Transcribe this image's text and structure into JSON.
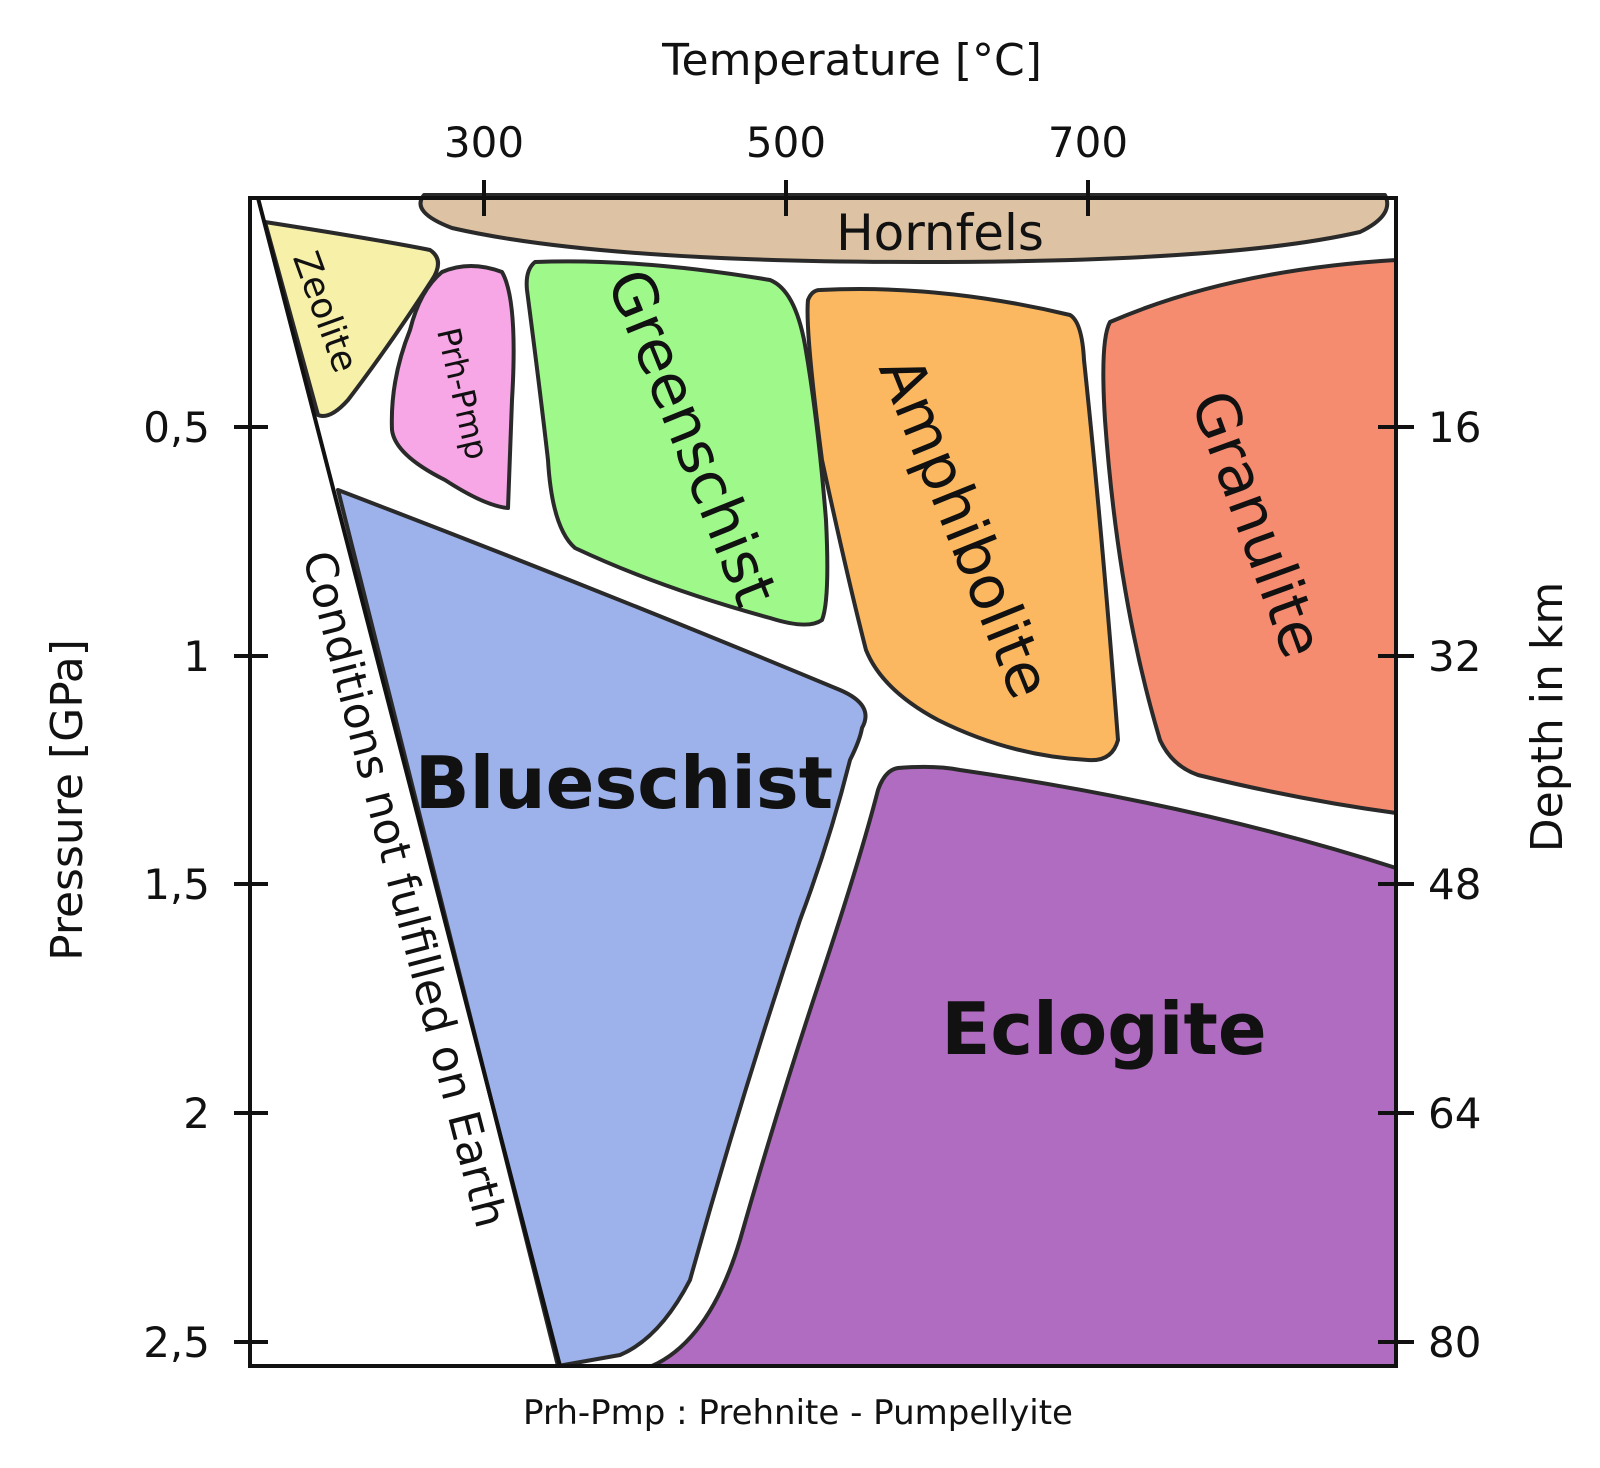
{
  "axes": {
    "top_title": "Temperature [°C]",
    "left_title": "Pressure [GPa]",
    "right_title": "Depth in km",
    "temperature_ticks": [
      "300",
      "500",
      "700"
    ],
    "pressure_ticks": [
      "0,5",
      "1",
      "1,5",
      "2",
      "2,5"
    ],
    "depth_ticks": [
      "16",
      "32",
      "48",
      "64",
      "80"
    ]
  },
  "facies": {
    "hornfels": "Hornfels",
    "zeolite": "Zeolite",
    "prh_pmp": "Prh-Pmp",
    "greenschist": "Greenschist",
    "amphibolite": "Amphibolite",
    "granulite": "Granulite",
    "blueschist": "Blueschist",
    "eclogite": "Eclogite",
    "forbidden": "Conditions not fulfilled on Earth"
  },
  "footnote": "Prh-Pmp : Prehnite - Pumpellyite",
  "colors": {
    "hornfels": "#ddc3a3",
    "zeolite": "#f6f0a8",
    "prh_pmp": "#f7a6e6",
    "greenschist": "#9ef98a",
    "amphibolite": "#fbb860",
    "granulite": "#f58c70",
    "blueschist": "#9db1ea",
    "eclogite": "#b06cc0"
  }
}
